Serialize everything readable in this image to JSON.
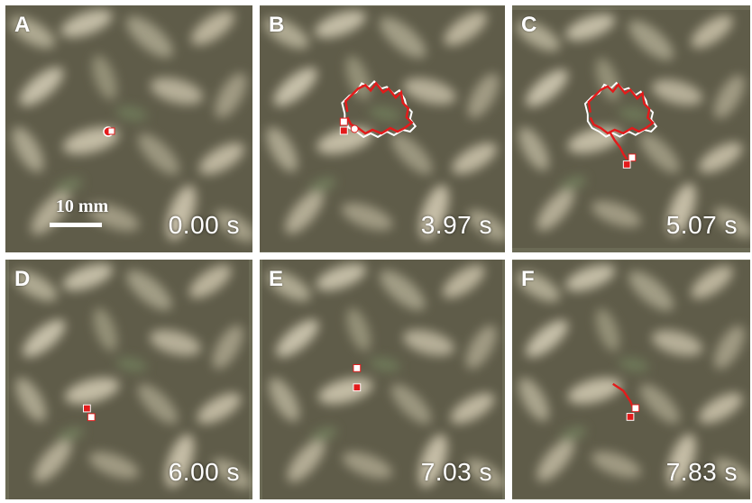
{
  "panels": [
    {
      "label": "A",
      "time": "0.00 s"
    },
    {
      "label": "B",
      "time": "3.97 s"
    },
    {
      "label": "C",
      "time": "5.07 s"
    },
    {
      "label": "D",
      "time": "6.00 s"
    },
    {
      "label": "E",
      "time": "7.03 s"
    },
    {
      "label": "F",
      "time": "7.83 s"
    }
  ],
  "scale_bar": {
    "label": "10 mm"
  },
  "colors": {
    "trajectory": "#e31b1b",
    "trajectory_alt": "#ffffff",
    "marker_fill": "#e31b1b"
  }
}
